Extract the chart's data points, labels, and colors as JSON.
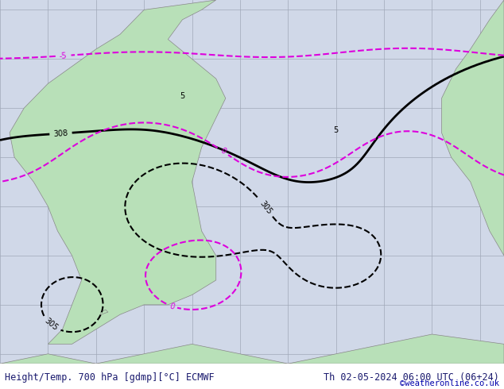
{
  "title_left": "Height/Temp. 700 hPa [gdmp][°C] ECMWF",
  "title_right": "Th 02-05-2024 06:00 UTC (06+24)",
  "copyright": "©weatheronline.co.uk",
  "background_color": "#d0d8e8",
  "land_color": "#b8e0b8",
  "grid_color": "#a0a8b8",
  "figsize": [
    6.34,
    4.9
  ],
  "dpi": 100,
  "text_color": "#1a1a6e",
  "font_size_title": 8.5,
  "font_size_copy": 7.5
}
